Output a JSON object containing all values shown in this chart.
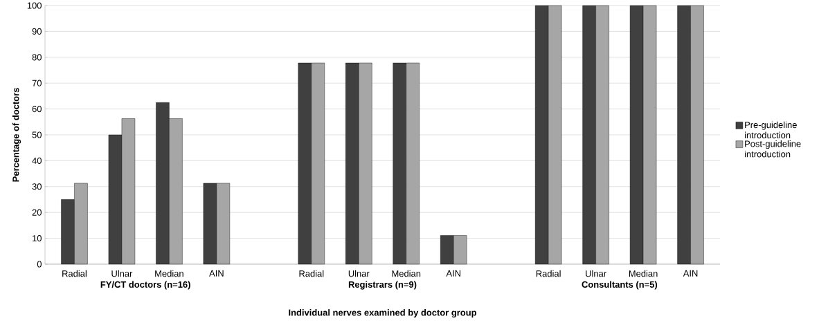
{
  "chart_data": {
    "type": "bar",
    "xlabel": "Individual nerves examined by doctor group",
    "ylabel": "Percentage of doctors",
    "categories": [
      "Radial",
      "Ulnar",
      "Median",
      "AIN",
      null,
      "Radial",
      "Ulnar",
      "Median",
      "AIN",
      null,
      "Radial",
      "Ulnar",
      "Median",
      "AIN"
    ],
    "series": [
      {
        "name": "Pre-guideline introduction",
        "color": "#404040",
        "values": [
          25,
          50,
          62.5,
          31.3,
          null,
          77.8,
          77.8,
          77.8,
          11.1,
          null,
          100,
          100,
          100,
          100
        ]
      },
      {
        "name": "Post-guideline introduction",
        "color": "#a6a6a6",
        "values": [
          31.3,
          56.3,
          56.3,
          31.3,
          null,
          77.8,
          77.8,
          77.8,
          11.1,
          null,
          100,
          100,
          100,
          100
        ]
      }
    ],
    "annotations": [
      "FY/CT doctors (n=16)",
      "Registrars (n=9)",
      "Consultants (n=5)"
    ],
    "ylim": [
      0,
      100
    ],
    "yticks": [
      0,
      10,
      20,
      30,
      40,
      50,
      60,
      70,
      80,
      90,
      100
    ],
    "grid": "y",
    "legend": "right"
  }
}
